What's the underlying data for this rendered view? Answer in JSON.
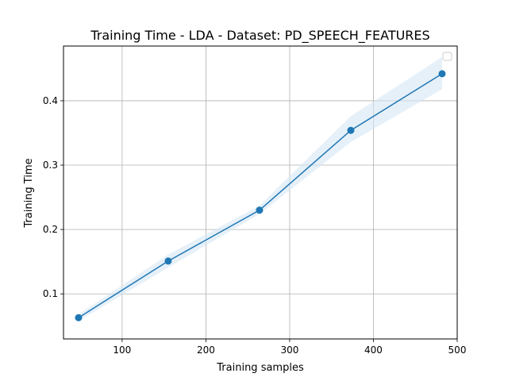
{
  "chart_data": {
    "type": "line",
    "title": "Training Time - LDA - Dataset: PD_SPEECH_FEATURES",
    "xlabel": "Training samples",
    "ylabel": "Training Time",
    "xlim": [
      30,
      500
    ],
    "ylim": [
      0.03,
      0.485
    ],
    "xticks": [
      100,
      200,
      300,
      400,
      500
    ],
    "xtick_labels": [
      "100",
      "200",
      "300",
      "400",
      "500"
    ],
    "yticks": [
      0.1,
      0.2,
      0.3,
      0.4
    ],
    "ytick_labels": [
      "0.1",
      "0.2",
      "0.3",
      "0.4"
    ],
    "grid": true,
    "legend": {
      "placement": "upper-right",
      "entries": []
    },
    "series": [
      {
        "x": [
          48,
          155,
          264,
          373,
          482
        ],
        "y": [
          0.063,
          0.151,
          0.23,
          0.354,
          0.442
        ],
        "y_lower": [
          0.058,
          0.141,
          0.224,
          0.336,
          0.418
        ],
        "y_upper": [
          0.068,
          0.161,
          0.237,
          0.376,
          0.468
        ],
        "color": "#1f77b4",
        "band_color": "#d6e6f5"
      }
    ]
  }
}
